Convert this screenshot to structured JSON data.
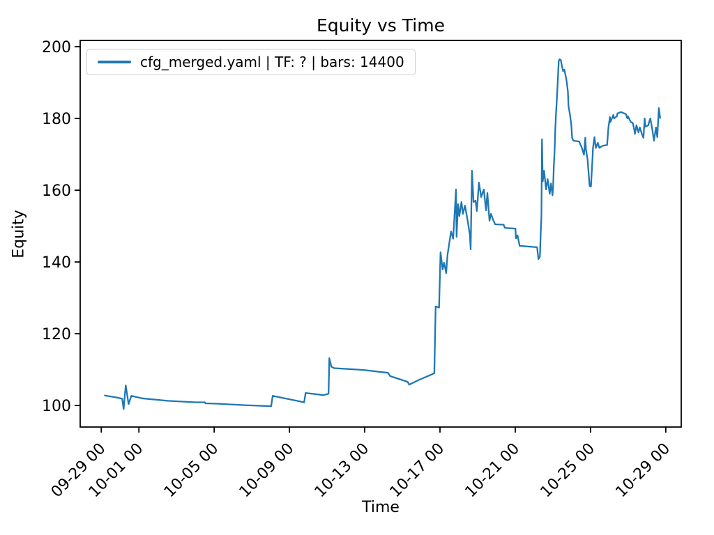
{
  "chart_data": {
    "type": "line",
    "title": "Equity vs Time",
    "xlabel": "Time",
    "ylabel": "Equity",
    "grid": false,
    "line_color": "#1f77b4",
    "legend": {
      "position": "upper left",
      "entries": [
        {
          "label": "cfg_merged.yaml | TF: ? | bars: 14400",
          "color": "#1f77b4"
        }
      ]
    },
    "x_unit": "days since 09-29 00:00, labels formatted MM-DD HH",
    "xlim": [
      -1.12,
      30.82
    ],
    "ylim": [
      94.0,
      201.75
    ],
    "x_ticks": [
      {
        "t": 0,
        "label": "09-29 00"
      },
      {
        "t": 2,
        "label": "10-01 00"
      },
      {
        "t": 6,
        "label": "10-05 00"
      },
      {
        "t": 10,
        "label": "10-09 00"
      },
      {
        "t": 14,
        "label": "10-13 00"
      },
      {
        "t": 18,
        "label": "10-17 00"
      },
      {
        "t": 22,
        "label": "10-21 00"
      },
      {
        "t": 26,
        "label": "10-25 00"
      },
      {
        "t": 30,
        "label": "10-29 00"
      }
    ],
    "y_ticks": [
      100,
      120,
      140,
      160,
      180,
      200
    ],
    "series": [
      {
        "name": "cfg_merged.yaml | TF: ? | bars: 14400",
        "points": [
          [
            0.19,
            102.8
          ],
          [
            0.75,
            102.3
          ],
          [
            1.11,
            101.9
          ],
          [
            1.19,
            99.0
          ],
          [
            1.3,
            105.6
          ],
          [
            1.45,
            100.4
          ],
          [
            1.6,
            102.7
          ],
          [
            2.16,
            102.0
          ],
          [
            3.53,
            101.3
          ],
          [
            5.02,
            100.9
          ],
          [
            5.5,
            100.9
          ],
          [
            5.54,
            100.6
          ],
          [
            6.13,
            100.5
          ],
          [
            7.62,
            100.1
          ],
          [
            9.03,
            99.8
          ],
          [
            9.11,
            102.7
          ],
          [
            10.78,
            100.9
          ],
          [
            10.86,
            103.5
          ],
          [
            11.82,
            102.9
          ],
          [
            12.08,
            103.3
          ],
          [
            12.12,
            113.2
          ],
          [
            12.23,
            110.8
          ],
          [
            12.38,
            110.4
          ],
          [
            13.94,
            109.9
          ],
          [
            15.24,
            109.1
          ],
          [
            15.35,
            108.2
          ],
          [
            16.28,
            106.6
          ],
          [
            16.36,
            105.8
          ],
          [
            16.91,
            107.2
          ],
          [
            17.58,
            108.7
          ],
          [
            17.7,
            109.0
          ],
          [
            17.77,
            127.6
          ],
          [
            17.95,
            127.3
          ],
          [
            18.03,
            142.7
          ],
          [
            18.14,
            137.9
          ],
          [
            18.22,
            139.8
          ],
          [
            18.33,
            136.9
          ],
          [
            18.4,
            142.0
          ],
          [
            18.59,
            148.5
          ],
          [
            18.7,
            146.5
          ],
          [
            18.85,
            160.2
          ],
          [
            18.88,
            147.0
          ],
          [
            18.96,
            156.1
          ],
          [
            19.03,
            152.8
          ],
          [
            19.14,
            156.7
          ],
          [
            19.22,
            153.4
          ],
          [
            19.33,
            155.7
          ],
          [
            19.44,
            152.4
          ],
          [
            19.59,
            147.6
          ],
          [
            19.63,
            143.5
          ],
          [
            19.7,
            165.4
          ],
          [
            19.78,
            156.7
          ],
          [
            19.89,
            157.1
          ],
          [
            19.96,
            154.2
          ],
          [
            20.07,
            162.1
          ],
          [
            20.19,
            158.1
          ],
          [
            20.33,
            160.2
          ],
          [
            20.45,
            154.4
          ],
          [
            20.52,
            159.2
          ],
          [
            20.63,
            151.5
          ],
          [
            20.71,
            153.4
          ],
          [
            20.82,
            151.8
          ],
          [
            20.93,
            150.5
          ],
          [
            21.38,
            150.4
          ],
          [
            21.45,
            149.5
          ],
          [
            22.01,
            149.3
          ],
          [
            22.04,
            146.6
          ],
          [
            22.12,
            147.4
          ],
          [
            22.19,
            145.6
          ],
          [
            22.23,
            144.5
          ],
          [
            23.16,
            144.1
          ],
          [
            23.23,
            140.8
          ],
          [
            23.31,
            141.5
          ],
          [
            23.35,
            147.6
          ],
          [
            23.39,
            152.8
          ],
          [
            23.42,
            174.2
          ],
          [
            23.46,
            162.5
          ],
          [
            23.53,
            165.4
          ],
          [
            23.64,
            160.2
          ],
          [
            23.72,
            163.1
          ],
          [
            23.83,
            159.0
          ],
          [
            23.9,
            161.9
          ],
          [
            23.98,
            158.6
          ],
          [
            24.01,
            160.6
          ],
          [
            24.05,
            166.8
          ],
          [
            24.09,
            171.0
          ],
          [
            24.13,
            177.1
          ],
          [
            24.16,
            181.0
          ],
          [
            24.2,
            184.3
          ],
          [
            24.24,
            188.3
          ],
          [
            24.28,
            192.6
          ],
          [
            24.31,
            195.9
          ],
          [
            24.35,
            196.5
          ],
          [
            24.42,
            196.3
          ],
          [
            24.46,
            195.1
          ],
          [
            24.54,
            193.2
          ],
          [
            24.61,
            193.6
          ],
          [
            24.72,
            190.7
          ],
          [
            24.8,
            187.4
          ],
          [
            24.83,
            183.5
          ],
          [
            24.91,
            181.0
          ],
          [
            24.98,
            178.1
          ],
          [
            25.02,
            174.6
          ],
          [
            25.09,
            173.8
          ],
          [
            25.39,
            173.6
          ],
          [
            25.54,
            171.8
          ],
          [
            25.65,
            169.9
          ],
          [
            25.72,
            174.6
          ],
          [
            25.76,
            171.3
          ],
          [
            25.84,
            168.7
          ],
          [
            25.95,
            161.2
          ],
          [
            26.02,
            161.0
          ],
          [
            26.1,
            168.3
          ],
          [
            26.13,
            171.7
          ],
          [
            26.21,
            174.8
          ],
          [
            26.28,
            171.8
          ],
          [
            26.39,
            173.2
          ],
          [
            26.47,
            171.8
          ],
          [
            26.65,
            172.4
          ],
          [
            26.88,
            172.6
          ],
          [
            26.95,
            177.5
          ],
          [
            27.03,
            180.4
          ],
          [
            27.06,
            179.0
          ],
          [
            27.21,
            181.0
          ],
          [
            27.25,
            180.0
          ],
          [
            27.4,
            180.6
          ],
          [
            27.43,
            181.4
          ],
          [
            27.62,
            181.8
          ],
          [
            27.88,
            181.2
          ],
          [
            27.96,
            180.0
          ],
          [
            27.99,
            180.6
          ],
          [
            28.14,
            179.0
          ],
          [
            28.25,
            178.7
          ],
          [
            28.33,
            176.7
          ],
          [
            28.36,
            175.7
          ],
          [
            28.44,
            178.1
          ],
          [
            28.55,
            176.1
          ],
          [
            28.62,
            177.5
          ],
          [
            28.74,
            175.5
          ],
          [
            28.81,
            174.6
          ],
          [
            28.88,
            180.0
          ],
          [
            28.92,
            177.7
          ],
          [
            29.07,
            178.1
          ],
          [
            29.11,
            179.0
          ],
          [
            29.18,
            180.0
          ],
          [
            29.29,
            176.7
          ],
          [
            29.37,
            173.8
          ],
          [
            29.48,
            177.5
          ],
          [
            29.55,
            174.8
          ],
          [
            29.63,
            182.9
          ],
          [
            29.7,
            180.1
          ]
        ]
      }
    ]
  }
}
